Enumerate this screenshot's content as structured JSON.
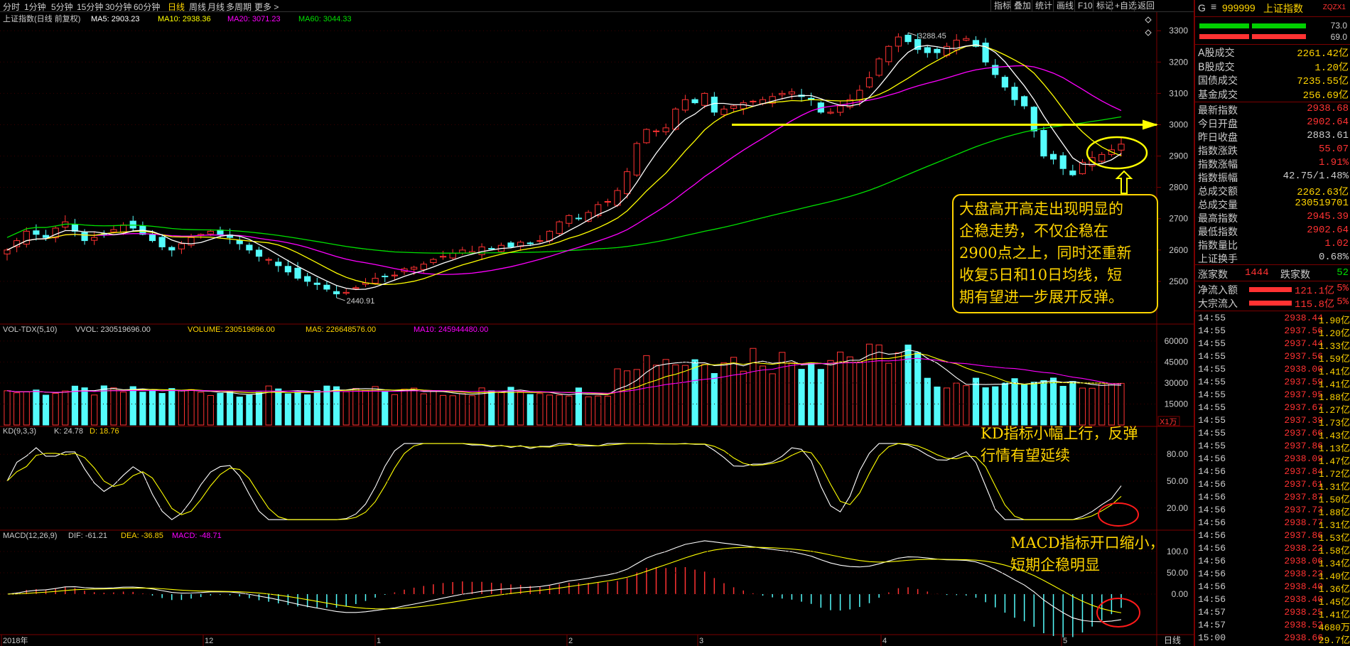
{
  "toolbar": {
    "periods": [
      "分时",
      "1分钟",
      "5分钟",
      "15分钟",
      "30分钟",
      "60分钟",
      "日线",
      "周线",
      "月线",
      "多周期",
      "更多 >"
    ],
    "active_period": "日线",
    "right_buttons": [
      "指标",
      "叠加",
      "统计",
      "画线",
      "F10",
      "标记",
      "+自选",
      "返回"
    ]
  },
  "main_panel": {
    "title": "上证指数(日线 前复权)",
    "ma5": "MA5: 2903.23",
    "ma10": "MA10: 2938.36",
    "ma20": "MA20: 3071.23",
    "ma60": "MA60: 3044.33",
    "y_ticks": [
      "3300",
      "3200",
      "3100",
      "3000",
      "2900",
      "2800",
      "2700",
      "2600",
      "2500"
    ],
    "high_label": "3288.45",
    "low_label": "2440.91",
    "colors": {
      "up": "#ff3232",
      "down": "#54fcfc",
      "ma5": "#ffffff",
      "ma10": "#ffff00",
      "ma20": "#ff00ff",
      "ma60": "#00e000",
      "line": "#ffff00"
    }
  },
  "vol_panel": {
    "title": "VOL-TDX(5,10)",
    "vvol": "VVOL: 230519696.00",
    "volume": "VOLUME: 230519696.00",
    "ma5": "MA5: 226648576.00",
    "ma10": "MA10: 245944480.00",
    "y_ticks": [
      "60000",
      "45000",
      "30000",
      "15000"
    ],
    "unit": "X1万"
  },
  "kd_panel": {
    "title": "KD(9,3,3)",
    "k": "K: 24.78",
    "d": "D: 18.76",
    "y_ticks": [
      "80.00",
      "50.00",
      "20.00"
    ]
  },
  "macd_panel": {
    "title": "MACD(12,26,9)",
    "dif": "DIF: -61.21",
    "dea": "DEA: -36.85",
    "macd": "MACD: -48.71",
    "y_ticks": [
      "100.0",
      "50.00",
      "0.00"
    ]
  },
  "x_axis": {
    "labels": [
      "2018年",
      "12",
      "1",
      "2",
      "3",
      "4",
      "5"
    ],
    "period_label": "日线"
  },
  "annotations": {
    "main": [
      "大盘高开高走出现明显的",
      "企稳走势，不仅企稳在",
      "2900点之上，同时还重新",
      "收复5日和10日均线，短",
      "期有望进一步展开反弹。"
    ],
    "kd": [
      "KD指标小幅上行，反弹",
      "行情有望延续"
    ],
    "macd": [
      "MACD指标开口缩小，",
      "短期企稳明显"
    ]
  },
  "right_panel": {
    "header": {
      "marker": "G",
      "code": "999999",
      "name": "上证指数",
      "tag": "ZQZX1"
    },
    "ratio_top": "73.0",
    "ratio_bottom": "69.0",
    "rows1": [
      {
        "label": "A股成交",
        "value": "2261.42亿"
      },
      {
        "label": "B股成交",
        "value": "1.20亿"
      },
      {
        "label": "国债成交",
        "value": "7235.55亿"
      },
      {
        "label": "基金成交",
        "value": "256.69亿"
      }
    ],
    "rows2": [
      {
        "label": "最新指数",
        "value": "2938.68",
        "color": "#ff3232"
      },
      {
        "label": "今日开盘",
        "value": "2902.64",
        "color": "#ff3232"
      },
      {
        "label": "昨日收盘",
        "value": "2883.61",
        "color": "#cccccc"
      },
      {
        "label": "指数涨跌",
        "value": "55.07",
        "color": "#ff3232"
      },
      {
        "label": "指数涨幅",
        "value": "1.91%",
        "color": "#ff3232"
      },
      {
        "label": "指数振幅",
        "value": "42.75/1.48%",
        "color": "#cccccc"
      },
      {
        "label": "总成交额",
        "value": "2262.63亿",
        "color": "#ffd400"
      },
      {
        "label": "总成交量",
        "value": "230519701",
        "color": "#ffd400"
      },
      {
        "label": "最高指数",
        "value": "2945.39",
        "color": "#ff3232"
      },
      {
        "label": "最低指数",
        "value": "2902.64",
        "color": "#ff3232"
      },
      {
        "label": "指数量比",
        "value": "1.02",
        "color": "#ff3232"
      },
      {
        "label": "上证换手",
        "value": "0.68%",
        "color": "#cccccc"
      }
    ],
    "up_label": "涨家数",
    "up_count": "1444",
    "down_label": "跌家数",
    "down_count": "52",
    "flows": [
      {
        "label": "净流入额",
        "value": "121.1亿",
        "pct": "5%"
      },
      {
        "label": "大宗流入",
        "value": "115.8亿",
        "pct": "5%"
      }
    ],
    "ticks": [
      {
        "t": "14:55",
        "p": "2938.44",
        "q": "1.90亿"
      },
      {
        "t": "14:55",
        "p": "2937.56",
        "q": "1.20亿"
      },
      {
        "t": "14:55",
        "p": "2937.44",
        "q": "1.33亿"
      },
      {
        "t": "14:55",
        "p": "2937.56",
        "q": "1.59亿"
      },
      {
        "t": "14:55",
        "p": "2938.00",
        "q": "1.41亿"
      },
      {
        "t": "14:55",
        "p": "2937.59",
        "q": "1.41亿"
      },
      {
        "t": "14:55",
        "p": "2937.95",
        "q": "1.88亿"
      },
      {
        "t": "14:55",
        "p": "2937.67",
        "q": "1.27亿"
      },
      {
        "t": "14:55",
        "p": "2937.39",
        "q": "1.73亿"
      },
      {
        "t": "14:55",
        "p": "2937.66",
        "q": "1.43亿"
      },
      {
        "t": "14:55",
        "p": "2937.86",
        "q": "1.13亿"
      },
      {
        "t": "14:56",
        "p": "2938.09",
        "q": "1.47亿"
      },
      {
        "t": "14:56",
        "p": "2937.84",
        "q": "1.72亿"
      },
      {
        "t": "14:56",
        "p": "2937.61",
        "q": "1.31亿"
      },
      {
        "t": "14:56",
        "p": "2937.87",
        "q": "1.50亿"
      },
      {
        "t": "14:56",
        "p": "2937.73",
        "q": "1.88亿"
      },
      {
        "t": "14:56",
        "p": "2938.77",
        "q": "1.31亿"
      },
      {
        "t": "14:56",
        "p": "2937.86",
        "q": "1.53亿"
      },
      {
        "t": "14:56",
        "p": "2938.22",
        "q": "1.58亿"
      },
      {
        "t": "14:56",
        "p": "2938.06",
        "q": "1.34亿"
      },
      {
        "t": "14:56",
        "p": "2938.23",
        "q": "1.40亿"
      },
      {
        "t": "14:56",
        "p": "2938.40",
        "q": "1.36亿"
      },
      {
        "t": "14:56",
        "p": "2938.40",
        "q": "1.45亿"
      },
      {
        "t": "14:57",
        "p": "2938.25",
        "q": "1.41亿"
      },
      {
        "t": "14:57",
        "p": "2938.52",
        "q": "4680万"
      },
      {
        "t": "15:00",
        "p": "2938.66",
        "q": "29.7亿"
      }
    ]
  },
  "chart_data": {
    "type": "candlestick",
    "title": "上证指数(日线 前复权)",
    "ylim": [
      2400,
      3330
    ],
    "daily_close_approx": [
      2600,
      2630,
      2660,
      2650,
      2640,
      2670,
      2690,
      2660,
      2630,
      2640,
      2650,
      2665,
      2680,
      2670,
      2650,
      2630,
      2610,
      2600,
      2620,
      2640,
      2650,
      2660,
      2650,
      2640,
      2620,
      2600,
      2580,
      2570,
      2550,
      2530,
      2510,
      2500,
      2490,
      2475,
      2460,
      2465,
      2480,
      2495,
      2510,
      2515,
      2520,
      2540,
      2545,
      2555,
      2570,
      2580,
      2590,
      2600,
      2595,
      2610,
      2605,
      2615,
      2610,
      2625,
      2620,
      2630,
      2660,
      2690,
      2710,
      2700,
      2720,
      2745,
      2755,
      2790,
      2850,
      2940,
      2985,
      2980,
      2990,
      3050,
      3080,
      3070,
      3100,
      3040,
      3050,
      3060,
      3070,
      3075,
      3080,
      3090,
      3100,
      3105,
      3090,
      3080,
      3040,
      3040,
      3060,
      3080,
      3110,
      3150,
      3210,
      3250,
      3280,
      3265,
      3240,
      3230,
      3230,
      3250,
      3270,
      3275,
      3250,
      3200,
      3160,
      3120,
      3080,
      3060,
      2980,
      2900,
      2890,
      2860,
      2840,
      2880,
      2895,
      2905,
      2920,
      2938
    ],
    "key_levels": {
      "high": 3288.45,
      "low": 2440.91,
      "support_line": 3000
    }
  }
}
